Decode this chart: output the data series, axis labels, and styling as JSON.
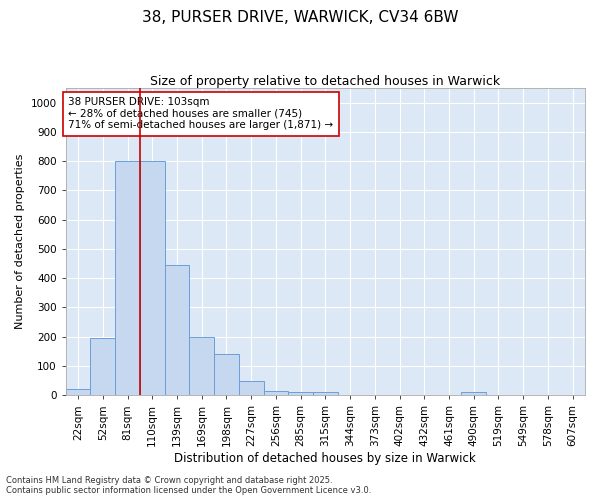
{
  "title": "38, PURSER DRIVE, WARWICK, CV34 6BW",
  "subtitle": "Size of property relative to detached houses in Warwick",
  "xlabel": "Distribution of detached houses by size in Warwick",
  "ylabel": "Number of detached properties",
  "categories": [
    "22sqm",
    "52sqm",
    "81sqm",
    "110sqm",
    "139sqm",
    "169sqm",
    "198sqm",
    "227sqm",
    "256sqm",
    "285sqm",
    "315sqm",
    "344sqm",
    "373sqm",
    "402sqm",
    "432sqm",
    "461sqm",
    "490sqm",
    "519sqm",
    "549sqm",
    "578sqm",
    "607sqm"
  ],
  "values": [
    20,
    195,
    800,
    800,
    445,
    200,
    140,
    50,
    15,
    10,
    10,
    0,
    0,
    0,
    0,
    0,
    10,
    0,
    0,
    0,
    0
  ],
  "bar_color": "#c5d8f0",
  "bar_edge_color": "#6a9fd8",
  "vline_color": "#cc0000",
  "annotation_text": "38 PURSER DRIVE: 103sqm\n← 28% of detached houses are smaller (745)\n71% of semi-detached houses are larger (1,871) →",
  "annotation_box_color": "white",
  "annotation_box_edge_color": "#cc0000",
  "ylim": [
    0,
    1050
  ],
  "yticks": [
    0,
    100,
    200,
    300,
    400,
    500,
    600,
    700,
    800,
    900,
    1000
  ],
  "bg_color": "#dce8f5",
  "footer": "Contains HM Land Registry data © Crown copyright and database right 2025.\nContains public sector information licensed under the Open Government Licence v3.0.",
  "title_fontsize": 11,
  "subtitle_fontsize": 9,
  "xlabel_fontsize": 8.5,
  "ylabel_fontsize": 8,
  "tick_fontsize": 7.5,
  "footer_fontsize": 6,
  "annotation_fontsize": 7.5
}
